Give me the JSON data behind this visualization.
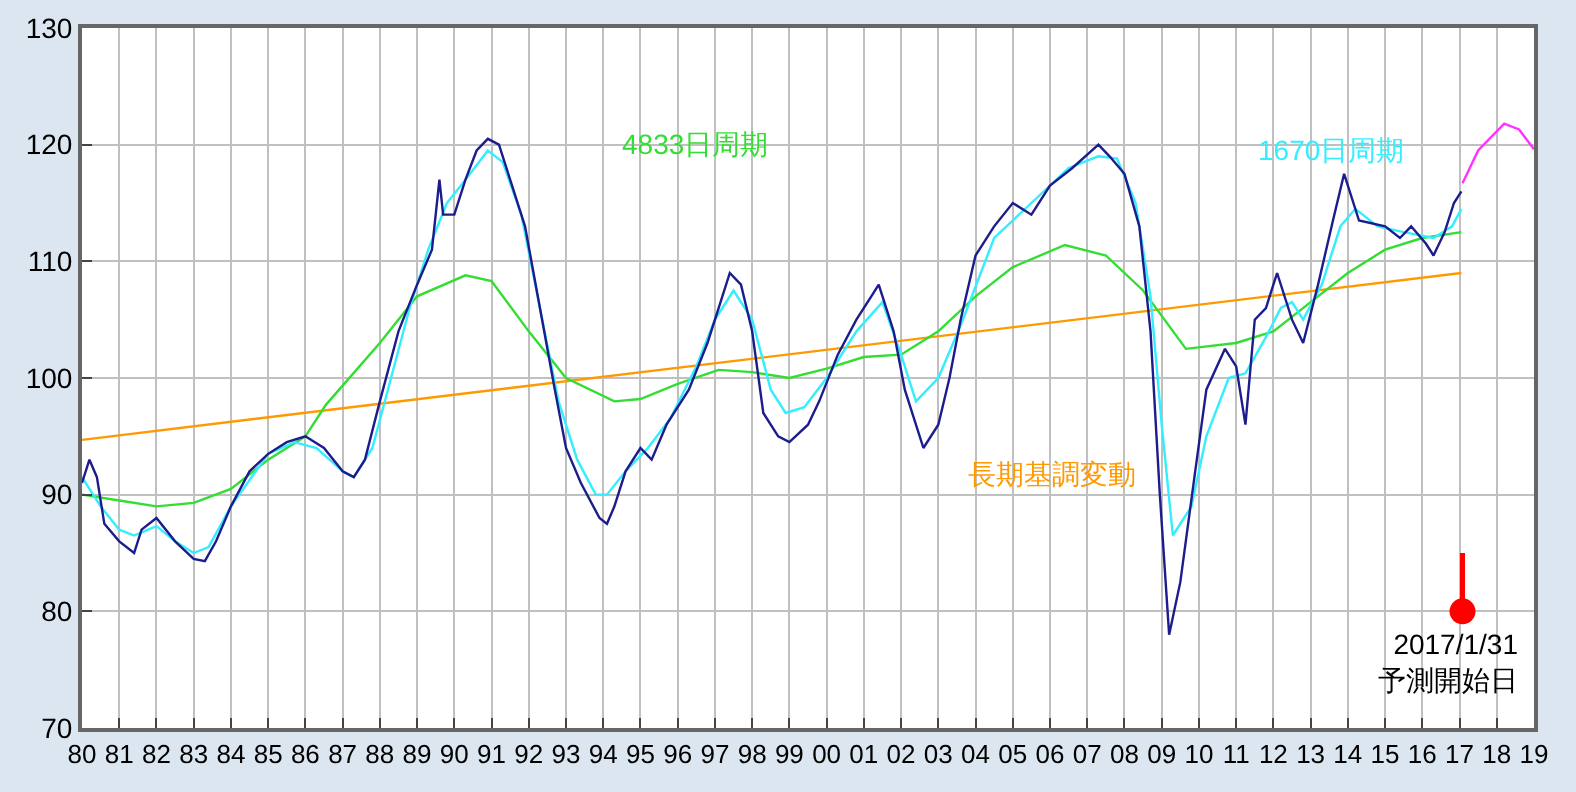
{
  "chart_data": {
    "type": "line",
    "xlim": [
      1980,
      2019
    ],
    "ylim": [
      70,
      130
    ],
    "xticks": [
      {
        "value": 1980,
        "label": "80"
      },
      {
        "value": 1981,
        "label": "81"
      },
      {
        "value": 1982,
        "label": "82"
      },
      {
        "value": 1983,
        "label": "83"
      },
      {
        "value": 1984,
        "label": "84"
      },
      {
        "value": 1985,
        "label": "85"
      },
      {
        "value": 1986,
        "label": "86"
      },
      {
        "value": 1987,
        "label": "87"
      },
      {
        "value": 1988,
        "label": "88"
      },
      {
        "value": 1989,
        "label": "89"
      },
      {
        "value": 1990,
        "label": "90"
      },
      {
        "value": 1991,
        "label": "91"
      },
      {
        "value": 1992,
        "label": "92"
      },
      {
        "value": 1993,
        "label": "93"
      },
      {
        "value": 1994,
        "label": "94"
      },
      {
        "value": 1995,
        "label": "95"
      },
      {
        "value": 1996,
        "label": "96"
      },
      {
        "value": 1997,
        "label": "97"
      },
      {
        "value": 1998,
        "label": "98"
      },
      {
        "value": 1999,
        "label": "99"
      },
      {
        "value": 2000,
        "label": "00"
      },
      {
        "value": 2001,
        "label": "01"
      },
      {
        "value": 2002,
        "label": "02"
      },
      {
        "value": 2003,
        "label": "03"
      },
      {
        "value": 2004,
        "label": "04"
      },
      {
        "value": 2005,
        "label": "05"
      },
      {
        "value": 2006,
        "label": "06"
      },
      {
        "value": 2007,
        "label": "07"
      },
      {
        "value": 2008,
        "label": "08"
      },
      {
        "value": 2009,
        "label": "09"
      },
      {
        "value": 2010,
        "label": "10"
      },
      {
        "value": 2011,
        "label": "11"
      },
      {
        "value": 2012,
        "label": "12"
      },
      {
        "value": 2013,
        "label": "13"
      },
      {
        "value": 2014,
        "label": "14"
      },
      {
        "value": 2015,
        "label": "15"
      },
      {
        "value": 2016,
        "label": "16"
      },
      {
        "value": 2017,
        "label": "17"
      },
      {
        "value": 2018,
        "label": "18"
      },
      {
        "value": 2019,
        "label": "19"
      }
    ],
    "yticks": [
      70,
      80,
      90,
      100,
      110,
      120,
      130
    ],
    "grid": true,
    "series": [
      {
        "name": "長期基調変動",
        "color": "#ff9900",
        "x": [
          1980,
          2017.05
        ],
        "values": [
          94.7,
          109
        ]
      },
      {
        "name": "4833日周期",
        "color": "#33dd33",
        "x": [
          1980,
          1981,
          1982,
          1983,
          1984,
          1985,
          1986,
          1986.55,
          1988,
          1989,
          1990.3,
          1991,
          1992,
          1993,
          1994.3,
          1995,
          1996,
          1997.1,
          1998,
          1999,
          2000,
          2001,
          2002,
          2003,
          2004,
          2005,
          2006.4,
          2007.5,
          2008.5,
          2009.65,
          2011,
          2012,
          2013,
          2014,
          2015,
          2016,
          2017.05
        ],
        "values": [
          90,
          89.5,
          89,
          89.3,
          90.5,
          93,
          95,
          97.7,
          103,
          107,
          108.8,
          108.3,
          104,
          100,
          98,
          98.2,
          99.5,
          100.7,
          100.5,
          100,
          100.8,
          101.8,
          102,
          104,
          107,
          109.5,
          111.4,
          110.5,
          107.5,
          102.5,
          103,
          104,
          106.5,
          109,
          111,
          112,
          112.5
        ]
      },
      {
        "name": "1670日周期",
        "color": "#33eeff",
        "x": [
          1980,
          1980.5,
          1981,
          1981.4,
          1982,
          1982.5,
          1983,
          1983.4,
          1984,
          1985,
          1985.7,
          1986.3,
          1987,
          1987.3,
          1987.8,
          1988.3,
          1988.8,
          1989.3,
          1989.8,
          1990.3,
          1990.9,
          1991.3,
          1991.8,
          1992.3,
          1992.8,
          1993.3,
          1993.8,
          1994.1,
          1994.6,
          1995.2,
          1995.8,
          1996.5,
          1997,
          1997.5,
          1998,
          1998.5,
          1998.9,
          1999.4,
          2000,
          2000.8,
          2001.5,
          2002,
          2002.4,
          2003,
          2003.6,
          2004.5,
          2005.5,
          2006.5,
          2007.3,
          2007.8,
          2008.3,
          2008.7,
          2009,
          2009.3,
          2009.8,
          2010.2,
          2010.8,
          2011.25,
          2011.8,
          2012.2,
          2012.5,
          2012.8,
          2013.3,
          2013.8,
          2014.2,
          2014.8,
          2015.5,
          2016.3,
          2016.8,
          2017.05
        ],
        "values": [
          91.5,
          89,
          87,
          86.5,
          87.3,
          86,
          85,
          85.5,
          89,
          93.5,
          94.5,
          94,
          92,
          91.5,
          94,
          100,
          106,
          111,
          115,
          117,
          119.5,
          118.5,
          114,
          106,
          98,
          93,
          90,
          90,
          92,
          94,
          96.5,
          101,
          105,
          107.5,
          105,
          99,
          97,
          97.5,
          100,
          104,
          106.5,
          102,
          98,
          100,
          104.5,
          112,
          115,
          118,
          119,
          118.8,
          115,
          107,
          96,
          86.5,
          89,
          95,
          100,
          100.4,
          103.5,
          106,
          106.5,
          105,
          108,
          113,
          114.5,
          113,
          112.5,
          112,
          113,
          114.5
        ]
      },
      {
        "color": "#1c1c8c",
        "x": [
          1980,
          1980.2,
          1980.4,
          1980.6,
          1981,
          1981.4,
          1981.6,
          1982,
          1982.5,
          1983,
          1983.3,
          1983.6,
          1984,
          1984.5,
          1985,
          1985.5,
          1986,
          1986.5,
          1987,
          1987.3,
          1987.6,
          1988,
          1988.5,
          1989,
          1989.4,
          1989.6,
          1989.7,
          1990,
          1990.3,
          1990.6,
          1990.9,
          1991.2,
          1991.5,
          1991.9,
          1992.3,
          1992.7,
          1993,
          1993.4,
          1993.9,
          1994.1,
          1994.3,
          1994.6,
          1995,
          1995.3,
          1995.7,
          1996.3,
          1996.8,
          1997.2,
          1997.4,
          1997.7,
          1998,
          1998.3,
          1998.7,
          1999,
          1999.5,
          1999.8,
          2000.3,
          2000.8,
          2001.2,
          2001.4,
          2001.8,
          2002.1,
          2002.5,
          2002.6,
          2003,
          2003.3,
          2003.6,
          2004,
          2004.5,
          2005,
          2005.5,
          2006,
          2006.6,
          2007.3,
          2007.6,
          2008,
          2008.4,
          2008.7,
          2008.95,
          2009.2,
          2009.5,
          2009.9,
          2010.2,
          2010.7,
          2011,
          2011.25,
          2011.5,
          2011.8,
          2012.1,
          2012.5,
          2012.8,
          2013.2,
          2013.6,
          2013.9,
          2014.3,
          2015,
          2015.4,
          2015.7,
          2016.1,
          2016.3,
          2016.6,
          2016.85,
          2017.05
        ],
        "values": [
          91,
          93,
          91.5,
          87.5,
          86,
          85,
          87,
          88,
          86,
          84.5,
          84.3,
          86,
          89,
          92,
          93.5,
          94.5,
          95,
          94,
          92,
          91.5,
          93,
          98,
          104,
          108,
          111,
          117,
          114,
          114,
          117,
          119.5,
          120.5,
          120,
          117,
          113,
          106,
          99,
          94,
          91,
          88,
          87.5,
          89,
          92,
          94,
          93,
          96,
          99,
          103,
          107,
          109,
          108,
          104,
          97,
          95,
          94.5,
          96,
          98,
          102,
          105,
          107,
          108,
          104,
          99,
          95,
          94,
          96,
          100,
          105,
          110.5,
          113,
          115,
          114,
          116.5,
          118,
          120,
          119,
          117.5,
          113,
          104,
          90,
          78,
          82.5,
          92,
          99,
          102.5,
          101,
          96,
          105,
          106,
          109,
          105,
          103,
          108,
          113.5,
          117.5,
          113.5,
          113,
          112,
          113,
          111.5,
          110.5,
          112.5,
          115,
          116
        ]
      },
      {
        "color": "#ff33ff",
        "x": [
          2017.08,
          2017.5,
          2018.2,
          2018.6,
          2019
        ],
        "values": [
          116.7,
          119.5,
          121.8,
          121.3,
          119.6
        ]
      },
      {
        "type": "scatter",
        "marker": "circle",
        "color": "#ff0000",
        "x": [
          2017.08
        ],
        "values": [
          80
        ],
        "errors": [
          [
            80,
            85
          ]
        ]
      }
    ],
    "annotations": [
      {
        "text": "2017/1/31\n予測開始日",
        "x": 2017.08,
        "y": 80
      }
    ]
  }
}
